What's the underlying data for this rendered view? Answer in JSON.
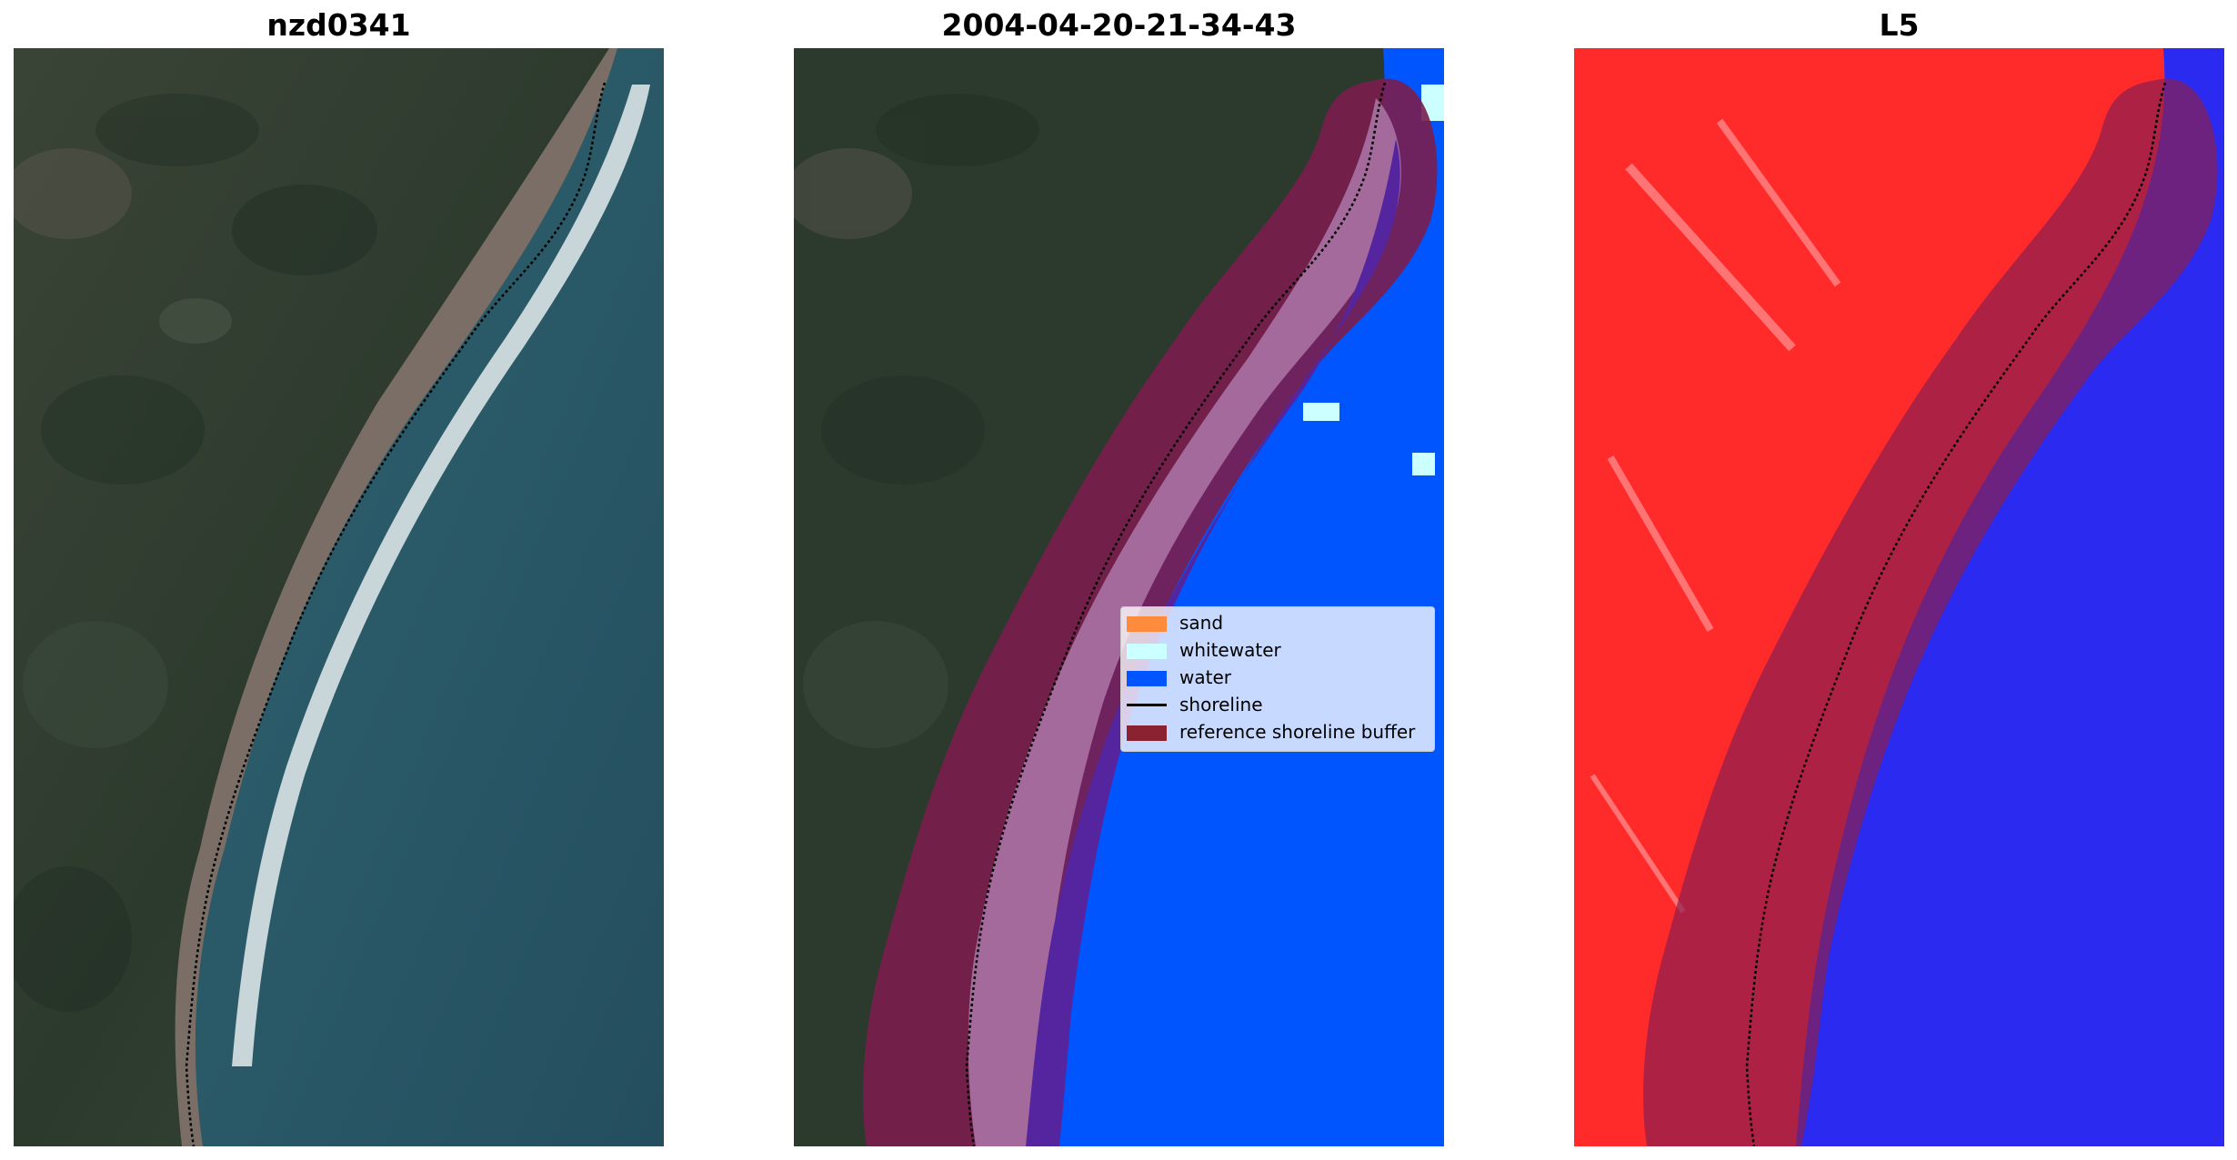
{
  "panels": [
    {
      "title": "nzd0341"
    },
    {
      "title": "2004-04-20-21-34-43"
    },
    {
      "title": "L5"
    }
  ],
  "legend": {
    "items": [
      {
        "label": "sand",
        "color": "#ff8c3c",
        "kind": "patch"
      },
      {
        "label": "whitewater",
        "color": "#ccffff",
        "kind": "patch"
      },
      {
        "label": "water",
        "color": "#0055ff",
        "kind": "patch"
      },
      {
        "label": "shoreline",
        "color": "#000000",
        "kind": "line"
      },
      {
        "label": "reference shoreline buffer",
        "color": "#8b2232",
        "kind": "patch"
      }
    ]
  },
  "colors": {
    "land": "#2c3a2d",
    "ocean": "#2a5666",
    "beach": "#7a6e66",
    "surf": "#e4ecee",
    "classified_water": "#0055ff",
    "buffer_land": "#7a1e4e",
    "buffer_beach": "#a46a9c",
    "buffer_water": "#5525a0",
    "index_land": "#ff2a2a",
    "index_water": "#2a2af0"
  }
}
